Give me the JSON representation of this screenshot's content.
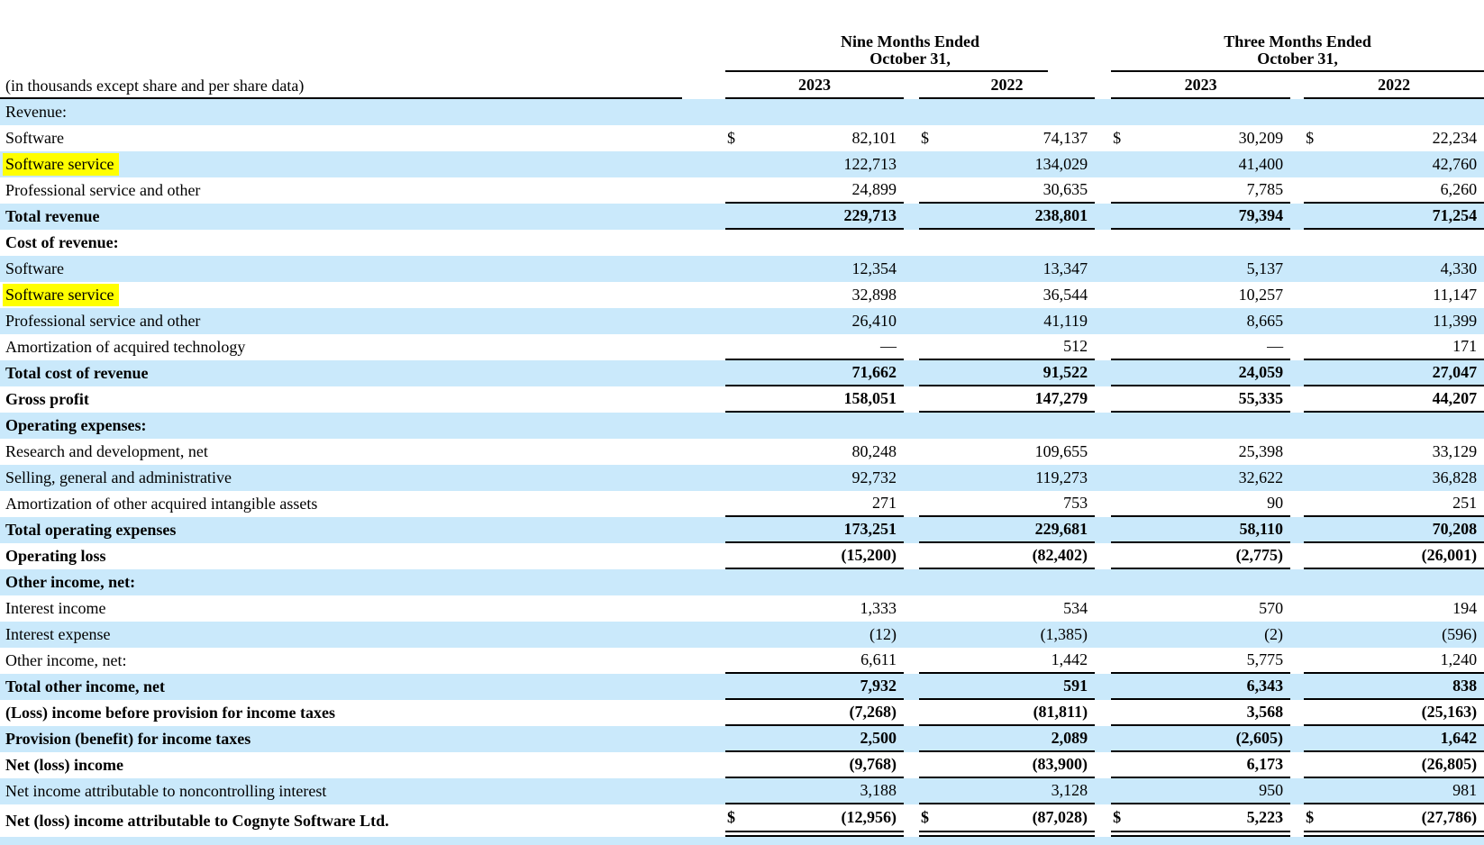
{
  "meta": {
    "units_note": "(in thousands except share and per share data)",
    "currency_symbol": "$",
    "em_dash": "—"
  },
  "colors": {
    "stripe": "#cae9fb",
    "highlight": "#ffff00",
    "rule": "#000000"
  },
  "header": {
    "groups": [
      {
        "line1": "Nine Months Ended",
        "line2": "October 31,",
        "years": [
          "2023",
          "2022"
        ]
      },
      {
        "line1": "Three Months Ended",
        "line2": "October 31,",
        "years": [
          "2023",
          "2022"
        ]
      }
    ]
  },
  "rows": [
    {
      "label": "Revenue:",
      "kind": "section",
      "bold": false
    },
    {
      "label": "Software",
      "dollar": true,
      "values": [
        "82,101",
        "74,137",
        "30,209",
        "22,234"
      ]
    },
    {
      "label": "Software service",
      "highlight": true,
      "values": [
        "122,713",
        "134,029",
        "41,400",
        "42,760"
      ]
    },
    {
      "label": "Professional service and other",
      "values": [
        "24,899",
        "30,635",
        "7,785",
        "6,260"
      ],
      "rule_below": true
    },
    {
      "label": "Total revenue",
      "bold": true,
      "values": [
        "229,713",
        "238,801",
        "79,394",
        "71,254"
      ],
      "rule_below": true
    },
    {
      "label": "Cost of revenue:",
      "kind": "section",
      "bold": true
    },
    {
      "label": "Software",
      "values": [
        "12,354",
        "13,347",
        "5,137",
        "4,330"
      ]
    },
    {
      "label": "Software service",
      "highlight": true,
      "values": [
        "32,898",
        "36,544",
        "10,257",
        "11,147"
      ]
    },
    {
      "label": "Professional service and other",
      "values": [
        "26,410",
        "41,119",
        "8,665",
        "11,399"
      ]
    },
    {
      "label": "Amortization of acquired technology",
      "values": [
        "—",
        "512",
        "—",
        "171"
      ],
      "rule_below": true
    },
    {
      "label": "Total cost of revenue",
      "bold": true,
      "values": [
        "71,662",
        "91,522",
        "24,059",
        "27,047"
      ],
      "rule_below": true
    },
    {
      "label": "Gross profit",
      "bold": true,
      "values": [
        "158,051",
        "147,279",
        "55,335",
        "44,207"
      ],
      "rule_below": true
    },
    {
      "label": "Operating expenses:",
      "kind": "section",
      "bold": true
    },
    {
      "label": "Research and development, net",
      "values": [
        "80,248",
        "109,655",
        "25,398",
        "33,129"
      ]
    },
    {
      "label": "Selling, general and administrative",
      "values": [
        "92,732",
        "119,273",
        "32,622",
        "36,828"
      ]
    },
    {
      "label": "Amortization of other acquired intangible assets",
      "values": [
        "271",
        "753",
        "90",
        "251"
      ],
      "rule_below": true
    },
    {
      "label": "Total operating expenses",
      "bold": true,
      "values": [
        "173,251",
        "229,681",
        "58,110",
        "70,208"
      ],
      "rule_below": true
    },
    {
      "label": "Operating loss",
      "bold": true,
      "values": [
        "(15,200)",
        "(82,402)",
        "(2,775)",
        "(26,001)"
      ],
      "rule_below": true
    },
    {
      "label": "Other income, net:",
      "kind": "section",
      "bold": true
    },
    {
      "label": "Interest income",
      "values": [
        "1,333",
        "534",
        "570",
        "194"
      ]
    },
    {
      "label": "Interest expense",
      "values": [
        "(12)",
        "(1,385)",
        "(2)",
        "(596)"
      ]
    },
    {
      "label": "Other income, net:",
      "values": [
        "6,611",
        "1,442",
        "5,775",
        "1,240"
      ],
      "rule_below": true
    },
    {
      "label": "Total other income, net",
      "bold": true,
      "values": [
        "7,932",
        "591",
        "6,343",
        "838"
      ],
      "rule_below": true
    },
    {
      "label": "(Loss) income before provision for income taxes",
      "bold": true,
      "values": [
        "(7,268)",
        "(81,811)",
        "3,568",
        "(25,163)"
      ],
      "rule_below": true
    },
    {
      "label": "Provision (benefit) for income taxes",
      "bold": true,
      "values": [
        "2,500",
        "2,089",
        "(2,605)",
        "1,642"
      ],
      "rule_below": true
    },
    {
      "label": "Net (loss) income",
      "bold": true,
      "values": [
        "(9,768)",
        "(83,900)",
        "6,173",
        "(26,805)"
      ],
      "rule_below": true
    },
    {
      "label": "Net income attributable to noncontrolling interest",
      "values": [
        "3,188",
        "3,128",
        "950",
        "981"
      ],
      "rule_below": true
    },
    {
      "label": "Net (loss) income attributable to Cognyte Software Ltd.",
      "bold": true,
      "dollar": true,
      "values": [
        "(12,956)",
        "(87,028)",
        "5,223",
        "(27,786)"
      ],
      "double_rule_below": true
    }
  ]
}
